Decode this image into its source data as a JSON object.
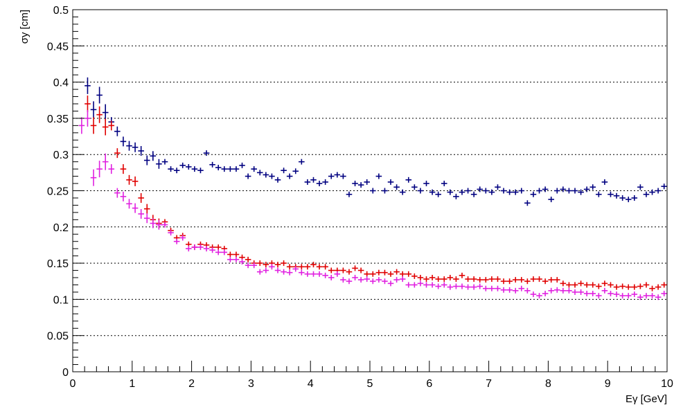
{
  "chart_data": {
    "type": "scatter",
    "title": "",
    "xlabel": "Eγ [GeV]",
    "ylabel": "σy [cm]",
    "xlim": [
      0,
      10
    ],
    "ylim": [
      0,
      0.5
    ],
    "grid": "horizontal dotted",
    "x_ticks": [
      0,
      1,
      2,
      3,
      4,
      5,
      6,
      7,
      8,
      9,
      10
    ],
    "x_tick_labels": [
      "0",
      "1",
      "2",
      "3",
      "4",
      "5",
      "6",
      "7",
      "8",
      "9",
      "10"
    ],
    "y_ticks": [
      0,
      0.05,
      0.1,
      0.15,
      0.2,
      0.25,
      0.3,
      0.35,
      0.4,
      0.45,
      0.5
    ],
    "y_tick_labels": [
      "0",
      "0.05",
      "0.1",
      "0.15",
      "0.2",
      "0.25",
      "0.3",
      "0.35",
      "0.4",
      "0.45",
      "0.5"
    ],
    "series": [
      {
        "color": "#000080",
        "points": [
          [
            0.25,
            0.395
          ],
          [
            0.35,
            0.362
          ],
          [
            0.45,
            0.382
          ],
          [
            0.55,
            0.358
          ],
          [
            0.65,
            0.345
          ],
          [
            0.75,
            0.332
          ],
          [
            0.85,
            0.318
          ],
          [
            0.95,
            0.312
          ],
          [
            1.05,
            0.31
          ],
          [
            1.15,
            0.305
          ],
          [
            1.25,
            0.292
          ],
          [
            1.35,
            0.298
          ],
          [
            1.45,
            0.287
          ],
          [
            1.55,
            0.29
          ],
          [
            1.65,
            0.28
          ],
          [
            1.75,
            0.278
          ],
          [
            1.85,
            0.285
          ],
          [
            1.95,
            0.283
          ],
          [
            2.05,
            0.28
          ],
          [
            2.15,
            0.278
          ],
          [
            2.25,
            0.302
          ],
          [
            2.35,
            0.286
          ],
          [
            2.45,
            0.282
          ],
          [
            2.55,
            0.28
          ],
          [
            2.65,
            0.28
          ],
          [
            2.75,
            0.28
          ],
          [
            2.85,
            0.285
          ],
          [
            2.95,
            0.27
          ],
          [
            3.05,
            0.28
          ],
          [
            3.15,
            0.275
          ],
          [
            3.25,
            0.272
          ],
          [
            3.35,
            0.27
          ],
          [
            3.45,
            0.265
          ],
          [
            3.55,
            0.278
          ],
          [
            3.65,
            0.27
          ],
          [
            3.75,
            0.277
          ],
          [
            3.85,
            0.29
          ],
          [
            3.95,
            0.262
          ],
          [
            4.05,
            0.265
          ],
          [
            4.15,
            0.26
          ],
          [
            4.25,
            0.262
          ],
          [
            4.35,
            0.27
          ],
          [
            4.45,
            0.272
          ],
          [
            4.55,
            0.27
          ],
          [
            4.65,
            0.245
          ],
          [
            4.75,
            0.26
          ],
          [
            4.85,
            0.258
          ],
          [
            4.95,
            0.262
          ],
          [
            5.05,
            0.25
          ],
          [
            5.15,
            0.27
          ],
          [
            5.25,
            0.25
          ],
          [
            5.35,
            0.262
          ],
          [
            5.45,
            0.255
          ],
          [
            5.55,
            0.248
          ],
          [
            5.65,
            0.265
          ],
          [
            5.75,
            0.255
          ],
          [
            5.85,
            0.25
          ],
          [
            5.95,
            0.26
          ],
          [
            6.05,
            0.248
          ],
          [
            6.15,
            0.245
          ],
          [
            6.25,
            0.26
          ],
          [
            6.35,
            0.248
          ],
          [
            6.45,
            0.242
          ],
          [
            6.55,
            0.248
          ],
          [
            6.65,
            0.25
          ],
          [
            6.75,
            0.245
          ],
          [
            6.85,
            0.252
          ],
          [
            6.95,
            0.25
          ],
          [
            7.05,
            0.248
          ],
          [
            7.15,
            0.255
          ],
          [
            7.25,
            0.25
          ],
          [
            7.35,
            0.248
          ],
          [
            7.45,
            0.248
          ],
          [
            7.55,
            0.25
          ],
          [
            7.65,
            0.233
          ],
          [
            7.75,
            0.245
          ],
          [
            7.85,
            0.25
          ],
          [
            7.95,
            0.252
          ],
          [
            8.05,
            0.238
          ],
          [
            8.15,
            0.25
          ],
          [
            8.25,
            0.252
          ],
          [
            8.35,
            0.25
          ],
          [
            8.45,
            0.25
          ],
          [
            8.55,
            0.248
          ],
          [
            8.65,
            0.252
          ],
          [
            8.75,
            0.255
          ],
          [
            8.85,
            0.245
          ],
          [
            8.95,
            0.262
          ],
          [
            9.05,
            0.245
          ],
          [
            9.15,
            0.243
          ],
          [
            9.25,
            0.24
          ],
          [
            9.35,
            0.238
          ],
          [
            9.45,
            0.24
          ],
          [
            9.55,
            0.255
          ],
          [
            9.65,
            0.245
          ],
          [
            9.75,
            0.248
          ],
          [
            9.85,
            0.25
          ],
          [
            9.95,
            0.256
          ]
        ]
      },
      {
        "color": "#e00000",
        "points": [
          [
            0.25,
            0.37
          ],
          [
            0.35,
            0.34
          ],
          [
            0.45,
            0.355
          ],
          [
            0.55,
            0.338
          ],
          [
            0.65,
            0.34
          ],
          [
            0.75,
            0.302
          ],
          [
            0.85,
            0.28
          ],
          [
            0.95,
            0.265
          ],
          [
            1.05,
            0.263
          ],
          [
            1.15,
            0.24
          ],
          [
            1.25,
            0.225
          ],
          [
            1.35,
            0.21
          ],
          [
            1.45,
            0.205
          ],
          [
            1.55,
            0.207
          ],
          [
            1.65,
            0.195
          ],
          [
            1.75,
            0.185
          ],
          [
            1.85,
            0.188
          ],
          [
            1.95,
            0.176
          ],
          [
            2.05,
            0.172
          ],
          [
            2.15,
            0.176
          ],
          [
            2.25,
            0.175
          ],
          [
            2.35,
            0.172
          ],
          [
            2.45,
            0.172
          ],
          [
            2.55,
            0.17
          ],
          [
            2.65,
            0.162
          ],
          [
            2.75,
            0.162
          ],
          [
            2.85,
            0.158
          ],
          [
            2.95,
            0.155
          ],
          [
            3.05,
            0.15
          ],
          [
            3.15,
            0.15
          ],
          [
            3.25,
            0.148
          ],
          [
            3.35,
            0.15
          ],
          [
            3.45,
            0.148
          ],
          [
            3.55,
            0.15
          ],
          [
            3.65,
            0.145
          ],
          [
            3.75,
            0.145
          ],
          [
            3.85,
            0.145
          ],
          [
            3.95,
            0.145
          ],
          [
            4.05,
            0.148
          ],
          [
            4.15,
            0.145
          ],
          [
            4.25,
            0.145
          ],
          [
            4.35,
            0.14
          ],
          [
            4.45,
            0.14
          ],
          [
            4.55,
            0.14
          ],
          [
            4.65,
            0.138
          ],
          [
            4.75,
            0.143
          ],
          [
            4.85,
            0.14
          ],
          [
            4.95,
            0.135
          ],
          [
            5.05,
            0.135
          ],
          [
            5.15,
            0.137
          ],
          [
            5.25,
            0.137
          ],
          [
            5.35,
            0.135
          ],
          [
            5.45,
            0.138
          ],
          [
            5.55,
            0.135
          ],
          [
            5.65,
            0.135
          ],
          [
            5.75,
            0.132
          ],
          [
            5.85,
            0.13
          ],
          [
            5.95,
            0.128
          ],
          [
            6.05,
            0.13
          ],
          [
            6.15,
            0.128
          ],
          [
            6.25,
            0.128
          ],
          [
            6.35,
            0.13
          ],
          [
            6.45,
            0.128
          ],
          [
            6.55,
            0.133
          ],
          [
            6.65,
            0.128
          ],
          [
            6.75,
            0.128
          ],
          [
            6.85,
            0.127
          ],
          [
            6.95,
            0.127
          ],
          [
            7.05,
            0.128
          ],
          [
            7.15,
            0.128
          ],
          [
            7.25,
            0.125
          ],
          [
            7.35,
            0.125
          ],
          [
            7.45,
            0.127
          ],
          [
            7.55,
            0.127
          ],
          [
            7.65,
            0.125
          ],
          [
            7.75,
            0.128
          ],
          [
            7.85,
            0.128
          ],
          [
            7.95,
            0.125
          ],
          [
            8.05,
            0.127
          ],
          [
            8.15,
            0.127
          ],
          [
            8.25,
            0.122
          ],
          [
            8.35,
            0.12
          ],
          [
            8.45,
            0.12
          ],
          [
            8.55,
            0.122
          ],
          [
            8.65,
            0.12
          ],
          [
            8.75,
            0.12
          ],
          [
            8.85,
            0.118
          ],
          [
            8.95,
            0.122
          ],
          [
            9.05,
            0.12
          ],
          [
            9.15,
            0.117
          ],
          [
            9.25,
            0.118
          ],
          [
            9.35,
            0.117
          ],
          [
            9.45,
            0.117
          ],
          [
            9.55,
            0.118
          ],
          [
            9.65,
            0.12
          ],
          [
            9.75,
            0.115
          ],
          [
            9.85,
            0.117
          ],
          [
            9.95,
            0.12
          ]
        ]
      },
      {
        "color": "#e020e0",
        "points": [
          [
            0.15,
            0.34
          ],
          [
            0.25,
            0.35
          ],
          [
            0.35,
            0.268
          ],
          [
            0.45,
            0.28
          ],
          [
            0.55,
            0.29
          ],
          [
            0.65,
            0.28
          ],
          [
            0.75,
            0.247
          ],
          [
            0.85,
            0.242
          ],
          [
            0.95,
            0.232
          ],
          [
            1.05,
            0.226
          ],
          [
            1.15,
            0.218
          ],
          [
            1.25,
            0.212
          ],
          [
            1.35,
            0.205
          ],
          [
            1.45,
            0.203
          ],
          [
            1.55,
            0.203
          ],
          [
            1.65,
            0.192
          ],
          [
            1.75,
            0.18
          ],
          [
            1.85,
            0.185
          ],
          [
            1.95,
            0.17
          ],
          [
            2.05,
            0.172
          ],
          [
            2.15,
            0.172
          ],
          [
            2.25,
            0.17
          ],
          [
            2.35,
            0.168
          ],
          [
            2.45,
            0.165
          ],
          [
            2.55,
            0.165
          ],
          [
            2.65,
            0.155
          ],
          [
            2.75,
            0.155
          ],
          [
            2.85,
            0.152
          ],
          [
            2.95,
            0.147
          ],
          [
            3.05,
            0.147
          ],
          [
            3.15,
            0.138
          ],
          [
            3.25,
            0.14
          ],
          [
            3.35,
            0.145
          ],
          [
            3.45,
            0.14
          ],
          [
            3.55,
            0.138
          ],
          [
            3.65,
            0.137
          ],
          [
            3.75,
            0.142
          ],
          [
            3.85,
            0.137
          ],
          [
            3.95,
            0.135
          ],
          [
            4.05,
            0.135
          ],
          [
            4.15,
            0.135
          ],
          [
            4.25,
            0.133
          ],
          [
            4.35,
            0.13
          ],
          [
            4.45,
            0.135
          ],
          [
            4.55,
            0.127
          ],
          [
            4.65,
            0.125
          ],
          [
            4.75,
            0.13
          ],
          [
            4.85,
            0.127
          ],
          [
            4.95,
            0.128
          ],
          [
            5.05,
            0.125
          ],
          [
            5.15,
            0.127
          ],
          [
            5.25,
            0.125
          ],
          [
            5.35,
            0.122
          ],
          [
            5.45,
            0.127
          ],
          [
            5.55,
            0.128
          ],
          [
            5.65,
            0.12
          ],
          [
            5.75,
            0.12
          ],
          [
            5.85,
            0.122
          ],
          [
            5.95,
            0.12
          ],
          [
            6.05,
            0.12
          ],
          [
            6.15,
            0.118
          ],
          [
            6.25,
            0.12
          ],
          [
            6.35,
            0.117
          ],
          [
            6.45,
            0.118
          ],
          [
            6.55,
            0.118
          ],
          [
            6.65,
            0.117
          ],
          [
            6.75,
            0.117
          ],
          [
            6.85,
            0.118
          ],
          [
            6.95,
            0.115
          ],
          [
            7.05,
            0.115
          ],
          [
            7.15,
            0.115
          ],
          [
            7.25,
            0.113
          ],
          [
            7.35,
            0.113
          ],
          [
            7.45,
            0.112
          ],
          [
            7.55,
            0.115
          ],
          [
            7.65,
            0.112
          ],
          [
            7.75,
            0.107
          ],
          [
            7.85,
            0.105
          ],
          [
            7.95,
            0.108
          ],
          [
            8.05,
            0.112
          ],
          [
            8.15,
            0.113
          ],
          [
            8.25,
            0.112
          ],
          [
            8.35,
            0.112
          ],
          [
            8.45,
            0.11
          ],
          [
            8.55,
            0.11
          ],
          [
            8.65,
            0.108
          ],
          [
            8.75,
            0.108
          ],
          [
            8.85,
            0.105
          ],
          [
            8.95,
            0.112
          ],
          [
            9.05,
            0.108
          ],
          [
            9.15,
            0.107
          ],
          [
            9.25,
            0.105
          ],
          [
            9.35,
            0.105
          ],
          [
            9.45,
            0.107
          ],
          [
            9.55,
            0.103
          ],
          [
            9.65,
            0.105
          ],
          [
            9.75,
            0.105
          ],
          [
            9.85,
            0.103
          ],
          [
            9.95,
            0.108
          ]
        ]
      }
    ]
  }
}
